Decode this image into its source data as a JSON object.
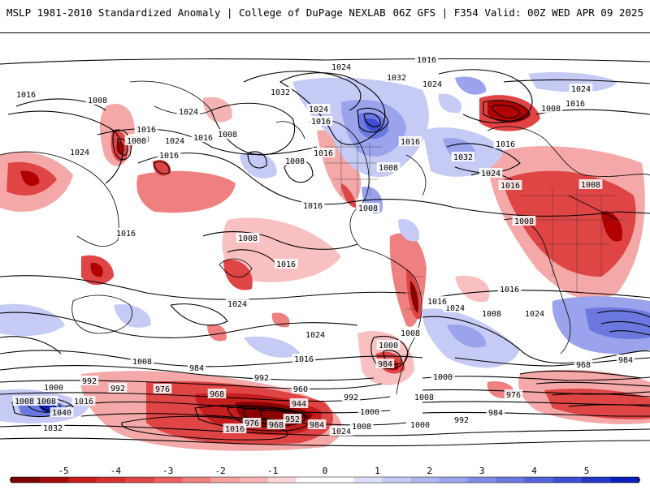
{
  "header": {
    "title_left": "MSLP 1981-2010 Standardized Anomaly | College of DuPage NEXLAB",
    "title_right": "06Z GFS | F354 Valid: 00Z WED APR 09 2025"
  },
  "legend": {
    "ticks": [
      "-5",
      "-4",
      "-3",
      "-2",
      "-1",
      "0",
      "1",
      "2",
      "3",
      "4",
      "5"
    ],
    "colors": [
      "#8b0000",
      "#c41e1e",
      "#e04545",
      "#f08080",
      "#f8b4b4",
      "#ffffff",
      "#c6cbf5",
      "#9aa3ec",
      "#6b78e0",
      "#3f4fd3",
      "#0a1fb8"
    ]
  },
  "isobar_labels": [
    "1016",
    "1024",
    "1032",
    "1032",
    "1024",
    "1024",
    "1016",
    "1008",
    "1024",
    "1016",
    "1008",
    "1016",
    "1016",
    "1024",
    "1008",
    "1008",
    "1008",
    "1016",
    "1016",
    "1032",
    "1024",
    "1016",
    "1008",
    "1016",
    "1024",
    "1016",
    "1024",
    "1008",
    "1008",
    "1008",
    "1016",
    "1008",
    "1016",
    "1016",
    "1016",
    "1008",
    "1016",
    "1024",
    "1024",
    "1016",
    "1024",
    "1008",
    "1000",
    "1008",
    "1008",
    "1016",
    "1000",
    "1024",
    "992",
    "984",
    "992",
    "976",
    "968",
    "960",
    "944",
    "952",
    "984",
    "976",
    "968",
    "1016",
    "1024",
    "1008",
    "1000",
    "992",
    "984",
    "976",
    "968",
    "984",
    "1000",
    "1008",
    "1040",
    "1032",
    "992",
    "1016",
    "1008",
    "1000",
    "992",
    "984",
    "1008"
  ],
  "colors": {
    "negative_strong": "#b00000",
    "negative": "#e04545",
    "positive": "#6b78e0",
    "positive_strong": "#0a1fb8"
  }
}
